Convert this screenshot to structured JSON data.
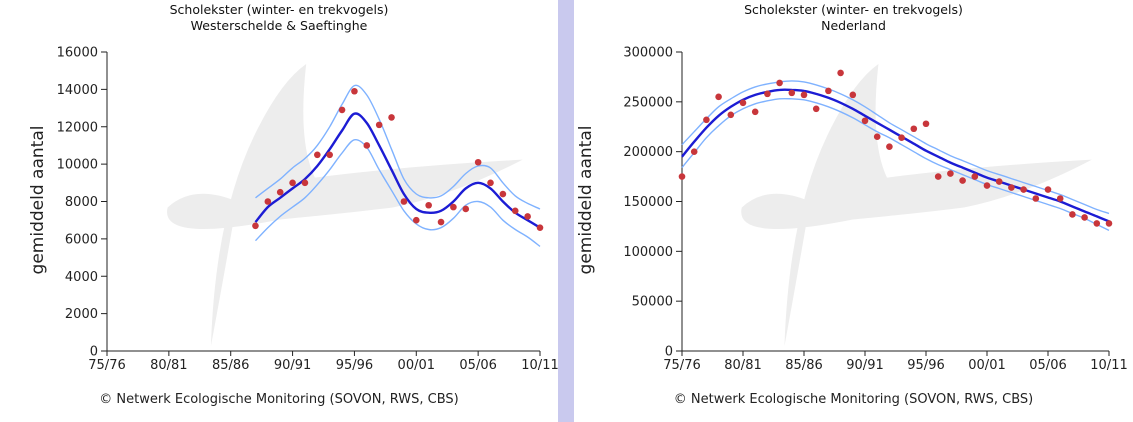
{
  "chart_data": [
    {
      "type": "line",
      "title": "Scholekster (winter- en trekvogels)",
      "subtitle": "Westerschelde & Saeftinghe",
      "ylabel": "gemiddeld aantal",
      "xlabel": "",
      "x_tick_labels": [
        "75/76",
        "80/81",
        "85/86",
        "90/91",
        "95/96",
        "00/01",
        "05/06",
        "10/11"
      ],
      "xlim": [
        1975,
        2010
      ],
      "ylim": [
        0,
        16000
      ],
      "y_ticks": [
        "0",
        "2000",
        "4000",
        "6000",
        "8000",
        "10000",
        "12000",
        "14000",
        "16000"
      ],
      "grid": false,
      "series": [
        {
          "role": "trend",
          "color": "#1c1cd4",
          "x": [
            1987,
            1988,
            1989,
            1990,
            1991,
            1992,
            1993,
            1994,
            1995,
            1996,
            1997,
            1998,
            1999,
            2000,
            2001,
            2002,
            2003,
            2004,
            2005,
            2006,
            2007,
            2008,
            2009,
            2010
          ],
          "y": [
            6900,
            7700,
            8200,
            8700,
            9200,
            9900,
            10800,
            11800,
            12700,
            12200,
            11000,
            9700,
            8400,
            7600,
            7400,
            7500,
            8000,
            8700,
            9000,
            8700,
            8000,
            7400,
            7000,
            6600
          ]
        },
        {
          "role": "upper-confidence",
          "color": "#7fb2ff",
          "x": [
            1987,
            1988,
            1989,
            1990,
            1991,
            1992,
            1993,
            1994,
            1995,
            1996,
            1997,
            1998,
            1999,
            2000,
            2001,
            2002,
            2003,
            2004,
            2005,
            2006,
            2007,
            2008,
            2009,
            2010
          ],
          "y": [
            8200,
            8700,
            9200,
            9800,
            10300,
            11000,
            12000,
            13200,
            14200,
            13700,
            12400,
            10800,
            9200,
            8400,
            8200,
            8300,
            8800,
            9500,
            9900,
            9800,
            9000,
            8300,
            7900,
            7600
          ]
        },
        {
          "role": "lower-confidence",
          "color": "#7fb2ff",
          "x": [
            1987,
            1988,
            1989,
            1990,
            1991,
            1992,
            1993,
            1994,
            1995,
            1996,
            1997,
            1998,
            1999,
            2000,
            2001,
            2002,
            2003,
            2004,
            2005,
            2006,
            2007,
            2008,
            2009,
            2010
          ],
          "y": [
            5900,
            6600,
            7200,
            7700,
            8200,
            8900,
            9700,
            10600,
            11300,
            10900,
            9700,
            8600,
            7500,
            6800,
            6500,
            6600,
            7100,
            7800,
            8000,
            7700,
            7000,
            6500,
            6100,
            5600
          ]
        },
        {
          "role": "observations",
          "color": "#c8363b",
          "x": [
            1987,
            1988,
            1989,
            1990,
            1991,
            1992,
            1993,
            1994,
            1995,
            1996,
            1997,
            1998,
            1999,
            2000,
            2001,
            2002,
            2003,
            2004,
            2005,
            2006,
            2007,
            2008,
            2009,
            2010
          ],
          "y": [
            6700,
            8000,
            8500,
            9000,
            9000,
            10500,
            10500,
            12900,
            13900,
            11000,
            12100,
            12500,
            8000,
            7000,
            7800,
            6900,
            7700,
            7600,
            10100,
            9000,
            8400,
            7500,
            7200,
            6600
          ]
        }
      ]
    },
    {
      "type": "line",
      "title": "Scholekster (winter- en trekvogels)",
      "subtitle": "Nederland",
      "ylabel": "gemiddeld aantal",
      "xlabel": "",
      "x_tick_labels": [
        "75/76",
        "80/81",
        "85/86",
        "90/91",
        "95/96",
        "00/01",
        "05/06",
        "10/11"
      ],
      "xlim": [
        1975,
        2010
      ],
      "ylim": [
        0,
        300000
      ],
      "y_ticks": [
        "0",
        "50000",
        "100000",
        "150000",
        "200000",
        "250000",
        "300000"
      ],
      "grid": false,
      "series": [
        {
          "role": "trend",
          "color": "#1c1cd4",
          "x": [
            1975,
            1976,
            1977,
            1978,
            1979,
            1980,
            1981,
            1982,
            1983,
            1984,
            1985,
            1986,
            1987,
            1988,
            1989,
            1990,
            1991,
            1992,
            1993,
            1994,
            1995,
            1996,
            1997,
            1998,
            1999,
            2000,
            2001,
            2002,
            2003,
            2004,
            2005,
            2006,
            2007,
            2008,
            2009,
            2010
          ],
          "y": [
            195000,
            210000,
            224000,
            236000,
            245000,
            252000,
            257000,
            260000,
            262000,
            262000,
            261000,
            258000,
            254000,
            249000,
            243000,
            236000,
            229000,
            222000,
            215000,
            208000,
            201000,
            195000,
            189000,
            184000,
            179000,
            174000,
            170000,
            166000,
            162000,
            158000,
            154000,
            150000,
            145000,
            140000,
            135000,
            130000
          ]
        },
        {
          "role": "upper-confidence",
          "color": "#7fb2ff",
          "x": [
            1975,
            1976,
            1977,
            1978,
            1979,
            1980,
            1981,
            1982,
            1983,
            1984,
            1985,
            1986,
            1987,
            1988,
            1989,
            1990,
            1991,
            1992,
            1993,
            1994,
            1995,
            1996,
            1997,
            1998,
            1999,
            2000,
            2001,
            2002,
            2003,
            2004,
            2005,
            2006,
            2007,
            2008,
            2009,
            2010
          ],
          "y": [
            207000,
            220000,
            233000,
            245000,
            253000,
            260000,
            265000,
            268000,
            270000,
            271000,
            270000,
            267000,
            263000,
            258000,
            252000,
            245000,
            237000,
            229000,
            222000,
            215000,
            208000,
            202000,
            196000,
            191000,
            186000,
            181000,
            177000,
            173000,
            169000,
            165000,
            161000,
            157000,
            152000,
            147000,
            142000,
            138000
          ]
        },
        {
          "role": "lower-confidence",
          "color": "#7fb2ff",
          "x": [
            1975,
            1976,
            1977,
            1978,
            1979,
            1980,
            1981,
            1982,
            1983,
            1984,
            1985,
            1986,
            1987,
            1988,
            1989,
            1990,
            1991,
            1992,
            1993,
            1994,
            1995,
            1996,
            1997,
            1998,
            1999,
            2000,
            2001,
            2002,
            2003,
            2004,
            2005,
            2006,
            2007,
            2008,
            2009,
            2010
          ],
          "y": [
            184000,
            199000,
            214000,
            226000,
            236000,
            243000,
            248000,
            251000,
            253000,
            253000,
            252000,
            249000,
            245000,
            240000,
            234000,
            227000,
            220000,
            214000,
            207000,
            200000,
            193000,
            187000,
            182000,
            177000,
            172000,
            167000,
            163000,
            159000,
            155000,
            151000,
            147000,
            143000,
            138000,
            133000,
            127000,
            121000
          ]
        },
        {
          "role": "observations",
          "color": "#c8363b",
          "x": [
            1975,
            1976,
            1977,
            1978,
            1979,
            1980,
            1981,
            1982,
            1983,
            1984,
            1985,
            1986,
            1987,
            1988,
            1989,
            1990,
            1991,
            1992,
            1993,
            1994,
            1995,
            1996,
            1997,
            1998,
            1999,
            2000,
            2001,
            2002,
            2003,
            2004,
            2005,
            2006,
            2007,
            2008,
            2009,
            2010
          ],
          "y": [
            175000,
            200000,
            232000,
            255000,
            237000,
            249000,
            240000,
            258000,
            269000,
            259000,
            257000,
            243000,
            261000,
            279000,
            257000,
            231000,
            215000,
            205000,
            214000,
            223000,
            228000,
            175000,
            178000,
            171000,
            175000,
            166000,
            170000,
            164000,
            162000,
            153000,
            162000,
            153000,
            137000,
            134000,
            128000,
            128000
          ]
        }
      ]
    }
  ],
  "panels": [
    {
      "title": "Scholekster (winter- en trekvogels)",
      "subtitle": "Westerschelde & Saeftinghe",
      "copyright": "©  Netwerk Ecologische Monitoring (SOVON, RWS, CBS)"
    },
    {
      "title": "Scholekster (winter- en trekvogels)",
      "subtitle": "Nederland",
      "copyright": "©  Netwerk Ecologische Monitoring (SOVON, RWS, CBS)"
    }
  ]
}
